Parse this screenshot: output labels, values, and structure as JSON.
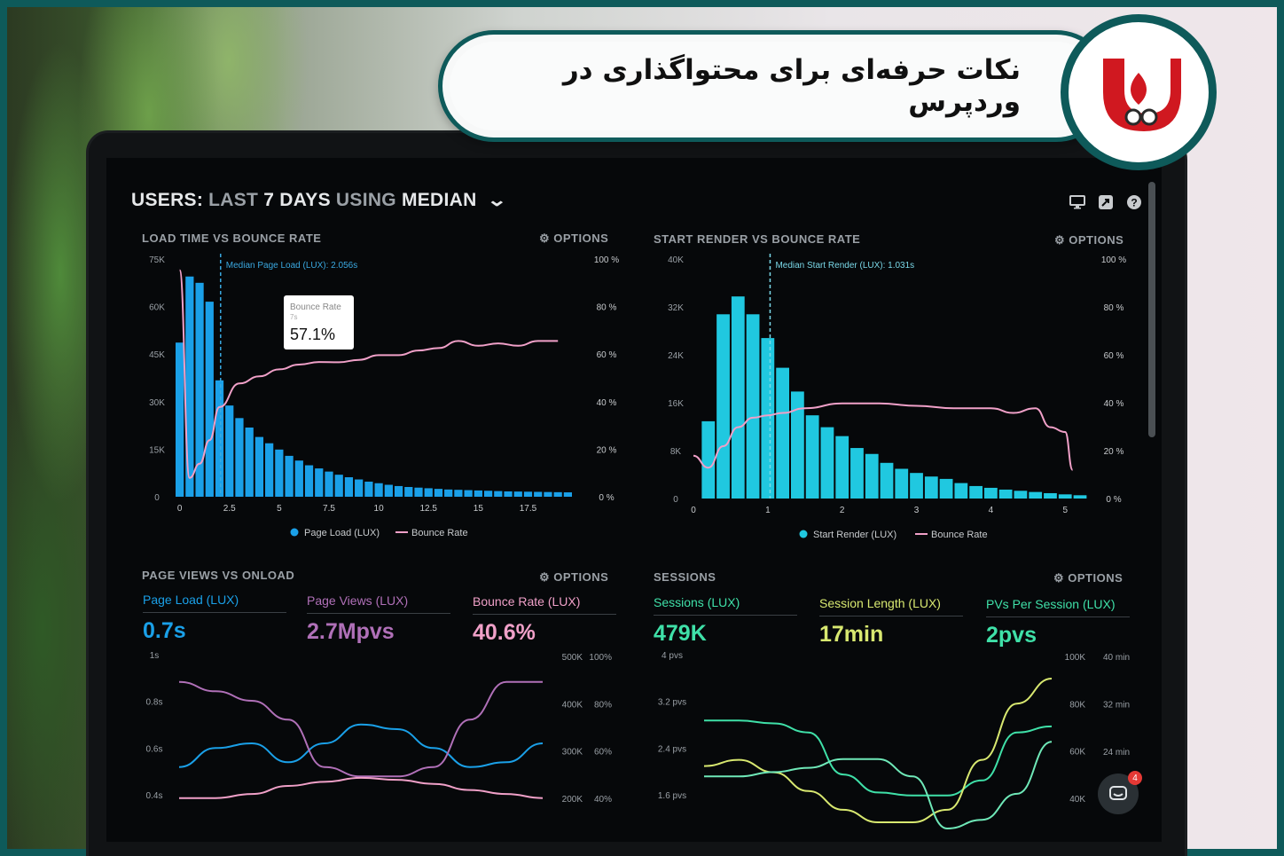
{
  "banner": {
    "title": "نکات حرفه‌ای برای محتواگذاری در وردپرس"
  },
  "dashboard": {
    "title_prefix": "USERS:",
    "title_dim1": "LAST",
    "title_days": "7 DAYS",
    "title_dim2": "USING",
    "title_median": "MEDIAN",
    "options_label": "⚙ OPTIONS"
  },
  "icons": [
    "monitor-icon",
    "share-icon",
    "help-icon",
    "gear-icon",
    "chat-icon",
    "chevron-down-icon",
    "logo-icon"
  ],
  "colors": {
    "blue": "#1aa0e8",
    "cyan": "#20c8e0",
    "pink": "#f0a0c8",
    "purple": "#b070b8",
    "green": "#3fe0a8",
    "yellow": "#d8e870",
    "teal": "#0e5a5a",
    "logo_red": "#d01820"
  },
  "chat": {
    "badge": "4"
  },
  "chart_data": [
    {
      "type": "bar",
      "title": "LOAD TIME VS BOUNCE RATE",
      "annotation": "Median Page Load (LUX): 2.056s",
      "median_x": 2.056,
      "tooltip": {
        "title": "Bounce Rate",
        "sub": "7s",
        "value": "57.1%"
      },
      "y_left_ticks": [
        "75K",
        "60K",
        "45K",
        "30K",
        "15K",
        "0"
      ],
      "y_right_ticks": [
        "100 %",
        "80 %",
        "60 %",
        "40 %",
        "20 %",
        "0 %"
      ],
      "x_ticks": [
        "0",
        "2.5",
        "5",
        "7.5",
        "10",
        "12.5",
        "15",
        "17.5"
      ],
      "ylim": [
        0,
        75000
      ],
      "xlim": [
        -0.25,
        19.75
      ],
      "series": [
        {
          "name": "Page Load (LUX)",
          "type": "bar",
          "bar_width": 0.5,
          "x": [
            -0.25,
            0.25,
            0.75,
            1.25,
            1.75,
            2.25,
            2.75,
            3.25,
            3.75,
            4.25,
            4.75,
            5.25,
            5.75,
            6.25,
            6.75,
            7.25,
            7.75,
            8.25,
            8.75,
            9.25,
            9.75,
            10.25,
            10.75,
            11.25,
            11.75,
            12.25,
            12.75,
            13.25,
            13.75,
            14.25,
            14.75,
            15.25,
            15.75,
            16.25,
            16.75,
            17.25,
            17.75,
            18.25,
            18.75,
            19.25
          ],
          "values": [
            49000,
            70000,
            68000,
            62000,
            37000,
            29000,
            25000,
            22000,
            19000,
            17000,
            15000,
            13000,
            11500,
            10000,
            9000,
            8000,
            7000,
            6200,
            5500,
            4800,
            4300,
            3800,
            3400,
            3100,
            2900,
            2700,
            2500,
            2300,
            2200,
            2100,
            2000,
            1900,
            1800,
            1700,
            1650,
            1600,
            1550,
            1500,
            1450,
            1400
          ]
        },
        {
          "name": "Bounce Rate",
          "type": "line",
          "x": [
            0,
            0.5,
            1,
            1.5,
            2,
            3,
            4,
            5,
            6,
            7,
            8,
            9,
            10,
            11,
            12,
            13,
            14,
            15,
            16,
            17,
            18,
            19
          ],
          "values": [
            96,
            8,
            14,
            24,
            38,
            48,
            51,
            54,
            56,
            57.1,
            57,
            58,
            60,
            60,
            62,
            63,
            66,
            64,
            65,
            64,
            66,
            66
          ]
        }
      ]
    },
    {
      "type": "bar",
      "title": "START RENDER VS BOUNCE RATE",
      "annotation": "Median Start Render (LUX): 1.031s",
      "median_x": 1.031,
      "y_left_ticks": [
        "40K",
        "32K",
        "24K",
        "16K",
        "8K",
        "0"
      ],
      "y_right_ticks": [
        "100 %",
        "80 %",
        "60 %",
        "40 %",
        "20 %",
        "0 %"
      ],
      "x_ticks": [
        "0",
        "1",
        "2",
        "3",
        "4",
        "5"
      ],
      "ylim": [
        0,
        40000
      ],
      "xlim": [
        0,
        5.2
      ],
      "series": [
        {
          "name": "Start Render (LUX)",
          "type": "bar",
          "bar_width": 0.2,
          "x": [
            0.1,
            0.3,
            0.5,
            0.7,
            0.9,
            1.1,
            1.3,
            1.5,
            1.7,
            1.9,
            2.1,
            2.3,
            2.5,
            2.7,
            2.9,
            3.1,
            3.3,
            3.5,
            3.7,
            3.9,
            4.1,
            4.3,
            4.5,
            4.7,
            4.9,
            5.1
          ],
          "values": [
            13000,
            31000,
            34000,
            31000,
            27000,
            22000,
            18000,
            14000,
            12000,
            10500,
            8500,
            7500,
            6000,
            5000,
            4300,
            3700,
            3300,
            2600,
            2100,
            1800,
            1500,
            1300,
            1100,
            900,
            700,
            550
          ]
        },
        {
          "name": "Bounce Rate",
          "type": "line",
          "x": [
            0,
            0.2,
            0.4,
            0.6,
            0.8,
            1,
            1.2,
            1.5,
            2,
            2.5,
            3,
            3.5,
            4,
            4.3,
            4.6,
            4.8,
            5,
            5.1
          ],
          "values": [
            18,
            13,
            22,
            30,
            34,
            35,
            36,
            38,
            40,
            40,
            39,
            38,
            38,
            36,
            38,
            30,
            28,
            12
          ]
        }
      ]
    },
    {
      "type": "line",
      "title": "PAGE VIEWS VS ONLOAD",
      "metrics": [
        {
          "label": "Page Load (LUX)",
          "value": "0.7s",
          "color": "#1aa0e8"
        },
        {
          "label": "Page Views (LUX)",
          "value": "2.7Mpvs",
          "color": "#b070b8"
        },
        {
          "label": "Bounce Rate (LUX)",
          "value": "40.6%",
          "color": "#f0a0c8"
        }
      ],
      "y_left_ticks": [
        "1s",
        "0.8s",
        "0.6s",
        "0.4s"
      ],
      "y_right_ticks_a": [
        "500K",
        "400K",
        "300K",
        "200K"
      ],
      "y_right_ticks_b": [
        "100%",
        "80%",
        "60%",
        "40%"
      ],
      "series": [
        {
          "name": "Page Load (LUX)",
          "x": [
            0,
            1,
            2,
            3,
            4,
            5,
            6,
            7,
            8,
            9,
            10
          ],
          "values": [
            0.6,
            0.68,
            0.7,
            0.62,
            0.7,
            0.78,
            0.76,
            0.68,
            0.6,
            0.62,
            0.7
          ]
        },
        {
          "name": "Page Views (LUX)",
          "x": [
            0,
            1,
            2,
            3,
            4,
            5,
            6,
            7,
            8,
            9,
            10
          ],
          "values": [
            480000,
            460000,
            440000,
            400000,
            300000,
            280000,
            280000,
            300000,
            400000,
            480000,
            480000
          ]
        },
        {
          "name": "Bounce Rate (LUX)",
          "x": [
            0,
            1,
            2,
            3,
            4,
            5,
            6,
            7,
            8,
            9,
            10
          ],
          "values": [
            38,
            38,
            40,
            44,
            46,
            48,
            47,
            45,
            42,
            40,
            38
          ]
        }
      ]
    },
    {
      "type": "line",
      "title": "SESSIONS",
      "metrics": [
        {
          "label": "Sessions (LUX)",
          "value": "479K",
          "color": "#3fe0a8"
        },
        {
          "label": "Session Length (LUX)",
          "value": "17min",
          "color": "#d8e870"
        },
        {
          "label": "PVs Per Session (LUX)",
          "value": "2pvs",
          "color": "#3fe0a8"
        }
      ],
      "y_left_ticks": [
        "4 pvs",
        "3.2 pvs",
        "2.4 pvs",
        "1.6 pvs"
      ],
      "y_right_ticks_a": [
        "100K",
        "80K",
        "60K",
        "40K"
      ],
      "y_right_ticks_b": [
        "40 min",
        "32 min",
        "24 min"
      ],
      "series": [
        {
          "name": "Sessions (LUX)",
          "x": [
            0,
            1,
            2,
            3,
            4,
            5,
            6,
            7,
            8,
            9,
            10
          ],
          "values": [
            3.2,
            3.2,
            3.15,
            3.0,
            2.3,
            2.0,
            1.95,
            1.95,
            2.2,
            3.0,
            3.1
          ]
        },
        {
          "name": "Session Length (LUX)",
          "x": [
            0,
            1,
            2,
            3,
            4,
            5,
            6,
            7,
            8,
            9,
            10
          ],
          "values": [
            2.0,
            2.1,
            1.9,
            1.6,
            1.3,
            1.1,
            1.1,
            1.3,
            2.1,
            3.0,
            3.4
          ]
        },
        {
          "name": "PVs Per Session (LUX)",
          "x": [
            0,
            1,
            2,
            3,
            4,
            5,
            6,
            7,
            8,
            9,
            10
          ],
          "values": [
            1.8,
            1.8,
            1.85,
            1.9,
            2.0,
            2.0,
            1.8,
            1.2,
            1.3,
            1.6,
            2.2
          ]
        }
      ]
    }
  ]
}
